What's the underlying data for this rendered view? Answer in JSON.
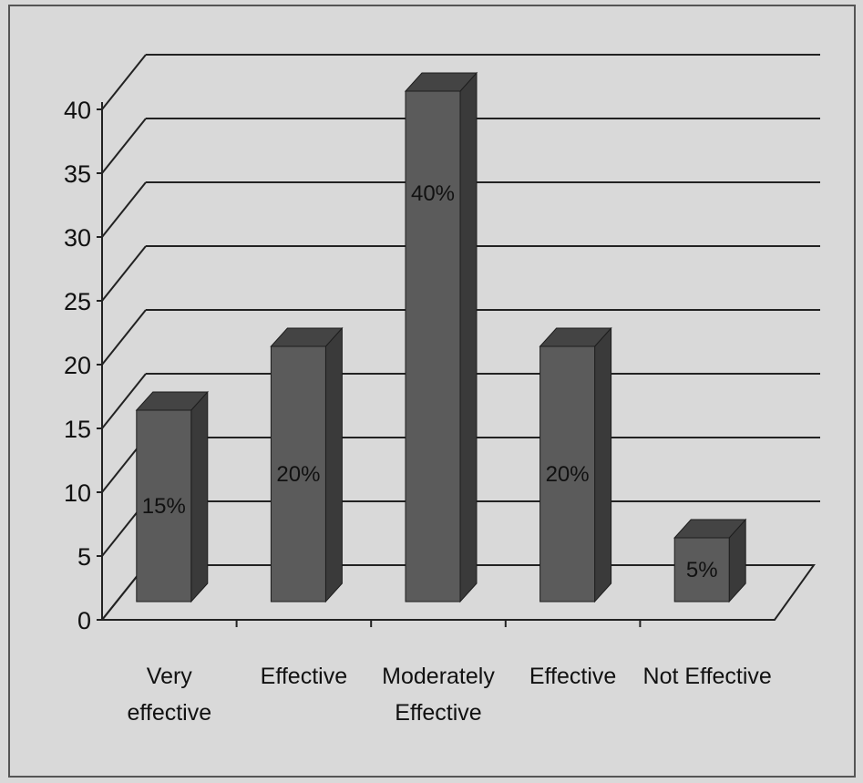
{
  "chart_data": {
    "type": "bar",
    "categories": [
      [
        "Very",
        "effective"
      ],
      [
        "Effective"
      ],
      [
        "Moderately",
        "Effective"
      ],
      [
        "Effective"
      ],
      [
        "Not Effective"
      ]
    ],
    "values": [
      15,
      20,
      40,
      20,
      5
    ],
    "data_labels": [
      "15%",
      "20%",
      "40%",
      "20%",
      "5%"
    ],
    "title": "",
    "xlabel": "",
    "ylabel": "",
    "ylim": [
      0,
      40
    ],
    "yticks": [
      0,
      5,
      10,
      15,
      20,
      25,
      30,
      35,
      40
    ],
    "grid": true,
    "legend": "none",
    "style": "3d-column",
    "colors": {
      "bar_front": "#5b5b5b",
      "bar_side": "#3a3a3a",
      "bar_top": "#444444",
      "background": "#d9d9d9",
      "gridline": "#222222"
    }
  }
}
